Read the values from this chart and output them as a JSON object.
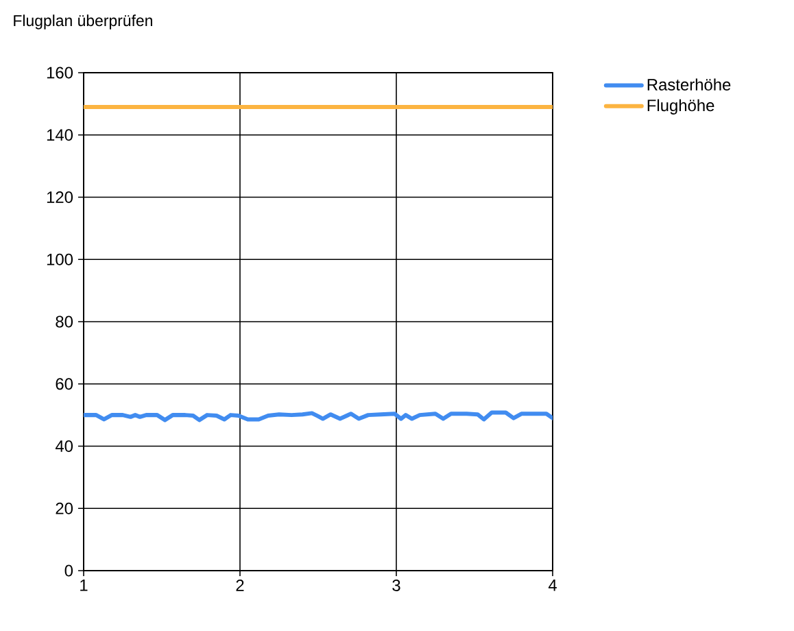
{
  "chart_data": {
    "type": "line",
    "title": "Flugplan überprüfen",
    "xlim": [
      1,
      4
    ],
    "ylim": [
      0,
      160
    ],
    "xticks": [
      1,
      2,
      3,
      4
    ],
    "yticks": [
      0,
      20,
      40,
      60,
      80,
      100,
      120,
      140,
      160
    ],
    "grid": true,
    "legend": "top right",
    "series": [
      {
        "name": "Rasterhöhe",
        "color": "#418cf0",
        "x": [
          1.0,
          1.08,
          1.13,
          1.18,
          1.25,
          1.3,
          1.33,
          1.36,
          1.4,
          1.47,
          1.52,
          1.57,
          1.65,
          1.7,
          1.74,
          1.79,
          1.85,
          1.9,
          1.94,
          1.99,
          2.05,
          2.12,
          2.18,
          2.25,
          2.33,
          2.4,
          2.46,
          2.5,
          2.53,
          2.58,
          2.64,
          2.71,
          2.76,
          2.82,
          2.9,
          2.99,
          3.03,
          3.06,
          3.1,
          3.15,
          3.25,
          3.3,
          3.35,
          3.45,
          3.52,
          3.56,
          3.61,
          3.7,
          3.75,
          3.8,
          3.9,
          3.96,
          4.0
        ],
        "values": [
          50.0,
          50.0,
          48.6,
          50.0,
          50.0,
          49.4,
          50.0,
          49.4,
          50.0,
          50.0,
          48.4,
          50.0,
          50.0,
          49.8,
          48.4,
          50.0,
          49.8,
          48.6,
          50.0,
          49.8,
          48.6,
          48.6,
          49.8,
          50.2,
          50.0,
          50.2,
          50.6,
          49.6,
          48.8,
          50.2,
          48.8,
          50.4,
          48.8,
          50.0,
          50.2,
          50.4,
          48.8,
          50.0,
          48.8,
          50.0,
          50.4,
          48.8,
          50.4,
          50.4,
          50.2,
          48.6,
          50.8,
          50.8,
          49.0,
          50.4,
          50.4,
          50.4,
          49.0
        ]
      },
      {
        "name": "Flughöhe",
        "color": "#fcb441",
        "x": [
          1,
          4
        ],
        "values": [
          149,
          149
        ]
      }
    ]
  }
}
